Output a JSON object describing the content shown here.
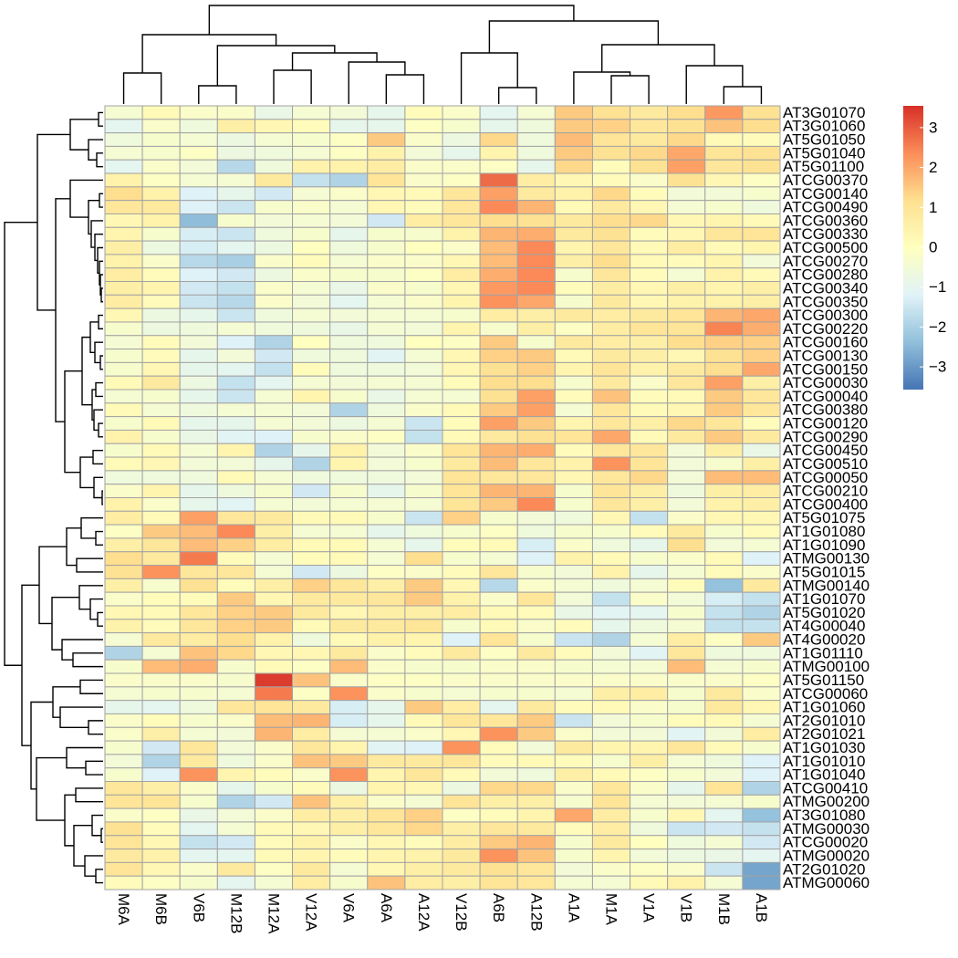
{
  "chart_data": {
    "type": "heatmap",
    "columns": [
      "M6A",
      "M6B",
      "V6B",
      "M12B",
      "M12A",
      "V12A",
      "V6A",
      "A6A",
      "A12A",
      "V12B",
      "A6B",
      "A12B",
      "A1A",
      "M1A",
      "V1A",
      "V1B",
      "M1B",
      "A1B"
    ],
    "rows": [
      "AT3G01070",
      "AT3G01060",
      "AT5G01050",
      "AT5G01040",
      "AT5G01100",
      "ATCG00370",
      "ATCG00140",
      "ATCG00490",
      "ATCG00360",
      "ATCG00330",
      "ATCG00500",
      "ATCG00270",
      "ATCG00280",
      "ATCG00340",
      "ATCG00350",
      "ATCG00300",
      "ATCG00220",
      "ATCG00160",
      "ATCG00130",
      "ATCG00150",
      "ATCG00030",
      "ATCG00040",
      "ATCG00380",
      "ATCG00120",
      "ATCG00290",
      "ATCG00450",
      "ATCG00510",
      "ATCG00050",
      "ATCG00210",
      "ATCG00400",
      "AT5G01075",
      "AT1G01080",
      "AT1G01090",
      "ATMG00130",
      "AT5G01015",
      "ATMG00140",
      "AT1G01070",
      "AT5G01020",
      "AT4G00040",
      "AT4G00020",
      "AT1G01110",
      "ATMG00100",
      "AT5G01150",
      "ATCG00060",
      "AT1G01060",
      "AT2G01010",
      "AT2G01021",
      "AT1G01030",
      "AT1G01010",
      "AT1G01040",
      "ATCG00410",
      "ATMG00200",
      "AT3G01080",
      "ATMG00030",
      "ATCG00020",
      "ATMG00020",
      "AT2G01020",
      "ATMG00060"
    ],
    "values": [
      [
        -0.4,
        0.2,
        -0.2,
        -0.2,
        -0.8,
        -0.4,
        -0.5,
        -0.9,
        0.1,
        -0.2,
        -1,
        -0.4,
        1.5,
        1.1,
        0.8,
        1.2,
        2.2,
        1.1
      ],
      [
        -1,
        -0.2,
        -0.6,
        0.6,
        0.3,
        0.1,
        -0.9,
        -0.9,
        -0.1,
        -0.3,
        -0.9,
        -0.6,
        1.5,
        1.4,
        0.9,
        1.1,
        1.6,
        1.2
      ],
      [
        -0.6,
        -0.3,
        -0.4,
        -0.7,
        -0.4,
        -0.3,
        -0.1,
        1.5,
        -0.2,
        -0.7,
        1.3,
        -0.6,
        1.7,
        1,
        0.8,
        1.3,
        0.2,
        0.1
      ],
      [
        -0.4,
        -0.3,
        -0.1,
        -0.7,
        -0.6,
        -0.4,
        -0.1,
        0.5,
        -0.5,
        -0.9,
        0.4,
        -0.6,
        1.5,
        1.1,
        1.3,
        2,
        1,
        1.1
      ],
      [
        -1,
        -0.2,
        -0.5,
        -1.8,
        -0.6,
        0.5,
        0.5,
        0.7,
        -0.2,
        -0.2,
        -0.1,
        -0.9,
        1.3,
        0.1,
        1.1,
        2.1,
        0.9,
        1.1
      ],
      [
        0.5,
        -0.1,
        -0.4,
        -0.4,
        0.8,
        -1.6,
        -1.9,
        1,
        -0.2,
        -0.1,
        2.8,
        0.7,
        0.3,
        0.1,
        -0.2,
        1.1,
        0.3,
        -0.1
      ],
      [
        1.2,
        0.5,
        -1.2,
        -0.9,
        -1.4,
        -0.4,
        -0.2,
        0.3,
        0.2,
        0.9,
        2.1,
        0.8,
        0.5,
        1.3,
        0.1,
        -0.5,
        -0.5,
        -0.3
      ],
      [
        0.9,
        0.8,
        -1.2,
        -1.5,
        -0.3,
        -0.2,
        -0.4,
        0.3,
        0.1,
        0.9,
        2.4,
        1.8,
        0.2,
        0.8,
        0.3,
        -0.4,
        -0.3,
        -0.6
      ],
      [
        0.3,
        0.5,
        -2.4,
        -0.3,
        -0.5,
        -0.4,
        -0.5,
        -1.4,
        0.7,
        0.9,
        1.2,
        1.1,
        0.8,
        1.2,
        1.3,
        0.3,
        0.4,
        0.2
      ],
      [
        0.4,
        -0.3,
        -1.3,
        -1.5,
        -0.6,
        -0.3,
        -0.9,
        -0.3,
        -0.3,
        0.5,
        1.8,
        1.9,
        0.8,
        1.1,
        0.1,
        0.3,
        0.9,
        1
      ],
      [
        0.6,
        -0.7,
        -1.3,
        -1,
        -0.7,
        0,
        -0.6,
        -0.3,
        0,
        -0.2,
        1.7,
        2.4,
        0.4,
        0.9,
        0.2,
        0.7,
        0.2,
        0.4
      ],
      [
        0.5,
        -0.2,
        -1.8,
        -2,
        -0.2,
        0.1,
        -0.4,
        -0.2,
        -0.2,
        0.3,
        1.7,
        2.4,
        0.6,
        1.2,
        0.2,
        0.1,
        0.4,
        -0.5
      ],
      [
        0.7,
        0.1,
        -1.2,
        -1.4,
        -0.7,
        -0.2,
        -0.3,
        -0.3,
        -0.1,
        0.7,
        1.9,
        2.4,
        -0.3,
        0.9,
        0.1,
        -0.4,
        0.5,
        0.2
      ],
      [
        0.6,
        0.4,
        -1.4,
        -1.6,
        -0.2,
        -0.4,
        -0.8,
        -0.2,
        -0.3,
        0.3,
        2.2,
        2.4,
        0.1,
        0.7,
        0.3,
        0.6,
        0.4,
        0.6
      ],
      [
        0.7,
        0.1,
        -1.5,
        -1.8,
        -0.2,
        -0.5,
        -1,
        -0.4,
        -0.2,
        0.4,
        2.3,
        2,
        -0.3,
        0.8,
        0.3,
        0.5,
        0.5,
        0.6
      ],
      [
        0.3,
        -0.7,
        -0.9,
        -1.5,
        -0.6,
        -0.4,
        -0.5,
        -0.4,
        -0.4,
        -0.3,
        0.7,
        0.6,
        0.8,
        0.7,
        0.8,
        1,
        1.8,
        2
      ],
      [
        -0.3,
        -0.7,
        -0.6,
        -0.4,
        -0.6,
        -0.6,
        -0.8,
        -0.4,
        -0.5,
        0.4,
        -0.3,
        0.6,
        -0.1,
        0.7,
        1,
        1,
        2.5,
        1.9
      ],
      [
        -0.4,
        0.1,
        -0.5,
        -1.2,
        -1.9,
        0,
        -0.6,
        -0.6,
        0,
        -0.1,
        1.5,
        -0.3,
        0.8,
        0.7,
        0.6,
        1.2,
        1.4,
        1.4
      ],
      [
        -0.3,
        0.1,
        -0.9,
        -0.5,
        -1.4,
        -0.6,
        -0.6,
        -1.1,
        -0.4,
        0.3,
        1.4,
        1.5,
        0.2,
        0.8,
        0.6,
        0.3,
        1.1,
        1.4
      ],
      [
        -0.3,
        0.3,
        -0.9,
        -1,
        -1.6,
        0.1,
        -0.6,
        -0.6,
        -0.5,
        0.3,
        1.1,
        1.4,
        0.4,
        1,
        0.5,
        0.8,
        1.2,
        2
      ],
      [
        0.2,
        0.8,
        -0.7,
        -1.6,
        -1,
        -0.4,
        -0.5,
        -0.4,
        -0.4,
        0.1,
        1.2,
        1.2,
        -0.3,
        0.8,
        -0.2,
        0.9,
        2.1,
        0.6
      ],
      [
        -0.4,
        -0.3,
        -0.9,
        -1.5,
        -0.4,
        0.4,
        -0.3,
        -0.8,
        -0.4,
        -0.4,
        1.1,
        2.1,
        0.1,
        1.6,
        0.1,
        0.2,
        1.5,
        0.9
      ],
      [
        0.2,
        -0.4,
        -0.6,
        -0.4,
        -0.4,
        -0.5,
        -1.9,
        -0.6,
        -0.2,
        0.2,
        1.5,
        2.1,
        -0.4,
        0.9,
        0.2,
        0.3,
        1.5,
        0.9
      ],
      [
        -0.3,
        0.2,
        -0.9,
        -0.9,
        -0.4,
        -0.5,
        -0.7,
        -0.4,
        -1.5,
        0.1,
        2.1,
        1.5,
        0.4,
        0.9,
        0.6,
        1.3,
        0.9,
        0.1
      ],
      [
        0.5,
        -0.3,
        -0.8,
        -1.1,
        -1.2,
        -0.3,
        -0.2,
        -0.1,
        -1.6,
        0.2,
        0.8,
        1.1,
        1,
        2,
        0.2,
        0.8,
        1.5,
        0.8
      ],
      [
        -0.3,
        0.2,
        -0.4,
        0.4,
        -1.9,
        -0.9,
        0.5,
        -0.5,
        -0.2,
        1,
        1.8,
        1.9,
        0.1,
        0.9,
        0.9,
        -0.5,
        0.6,
        -0.8
      ],
      [
        0.2,
        0.3,
        -0.5,
        -0.5,
        -0.9,
        -1.9,
        0.4,
        -0.5,
        -0.3,
        0.8,
        1.7,
        0.9,
        0.5,
        2.3,
        1,
        -0.5,
        -0.3,
        0.6
      ],
      [
        -0.6,
        -0.6,
        -0.6,
        0.2,
        -0.4,
        -0.6,
        -0.6,
        -0.6,
        -0.5,
        1,
        0.9,
        0.9,
        0.3,
        0.9,
        1.3,
        -0.5,
        1.7,
        1.7
      ],
      [
        -0.2,
        0.4,
        -0.9,
        -0.6,
        -0.3,
        -1.4,
        -0.3,
        -0.9,
        -0.3,
        1,
        1.8,
        1.8,
        -0.3,
        1,
        0.6,
        -0.6,
        0.6,
        0.7
      ],
      [
        0.5,
        -0.2,
        -0.9,
        -1.1,
        -0.4,
        -0.5,
        -0.4,
        -0.4,
        -0.4,
        1,
        1.5,
        2.4,
        -0.3,
        0.9,
        0.6,
        -0.5,
        0.5,
        0.6
      ],
      [
        0.7,
        0.2,
        2.1,
        0.9,
        0.8,
        0.2,
        0.2,
        -0.3,
        -1.5,
        1.4,
        -0.3,
        -0.5,
        -0.6,
        0.3,
        -1.6,
        -0.2,
        0.3,
        0.3
      ],
      [
        -0.1,
        1.5,
        1.7,
        2.4,
        0.6,
        -0.4,
        -0.4,
        -0.9,
        -0.6,
        -0.3,
        -0.1,
        -0.6,
        -0.3,
        -0.3,
        0.1,
        0.8,
        -0.3,
        0.1
      ],
      [
        0.6,
        0.9,
        1.7,
        1.4,
        0.7,
        0.2,
        0.2,
        -0.4,
        -0.9,
        0.1,
        0.2,
        -1.3,
        -0.2,
        -0.6,
        -0.9,
        1.2,
        -0.5,
        -0.4
      ],
      [
        1.2,
        0.8,
        2.6,
        0.1,
        -0.4,
        0.1,
        0.2,
        -0.4,
        1.2,
        -0.3,
        -0.4,
        -1.2,
        0.5,
        0.2,
        -0.3,
        -0.2,
        0.2,
        -1.2
      ],
      [
        1.1,
        2.3,
        0.9,
        0.9,
        -0.4,
        -1.4,
        -0.7,
        -0.1,
        -0.2,
        0.1,
        0.9,
        -0.3,
        -0.5,
        0.5,
        -0.9,
        -0.4,
        0.1,
        -0.2
      ],
      [
        0.6,
        -0.3,
        1.1,
        0.1,
        0.6,
        1.4,
        0.9,
        0.6,
        1.5,
        0.3,
        -1.8,
        -0.2,
        -0.4,
        -0.6,
        -0.4,
        0.1,
        -2.3,
        0.8
      ],
      [
        -0.2,
        0.1,
        0.1,
        1.5,
        0.3,
        0.8,
        0.8,
        0.9,
        1.5,
        0.5,
        -0.2,
        0.9,
        -0.5,
        -1.6,
        -0.2,
        -0.5,
        -1.3,
        -1.6
      ],
      [
        0.3,
        0.2,
        0.9,
        1.4,
        1.5,
        0.8,
        0.3,
        0.6,
        0.6,
        0.7,
        0.2,
        0.1,
        -0.8,
        -1.1,
        -1,
        -0.3,
        -1.6,
        -1.9
      ],
      [
        0.5,
        0.1,
        0.9,
        1.4,
        1.5,
        0.2,
        0.8,
        0.8,
        1,
        -0.3,
        0.2,
        -0.2,
        0.1,
        -0.9,
        -0.6,
        -0.4,
        -1.6,
        -1.6
      ],
      [
        -0.4,
        0.8,
        0.7,
        1.2,
        0.5,
        -0.6,
        0.2,
        0.5,
        0.4,
        -1.2,
        1,
        -0.3,
        -1.5,
        -1.9,
        -0.4,
        0.7,
        -0.1,
        1.5
      ],
      [
        -1.9,
        -0.4,
        1.6,
        1.3,
        0.3,
        0.3,
        0.8,
        -0.2,
        0.1,
        0.8,
        -0.1,
        0.8,
        0.1,
        -0.5,
        -1.1,
        0.9,
        -0.6,
        -0.6
      ],
      [
        -0.3,
        1.7,
        1.9,
        -0.3,
        0.2,
        -0.1,
        1.7,
        -0.2,
        -0.3,
        -0.3,
        -0.2,
        -0.2,
        -0.3,
        -0.4,
        -0.4,
        1.7,
        -0.4,
        -0.3
      ],
      [
        -0.2,
        -0.2,
        -0.2,
        -0.3,
        3.4,
        1.6,
        -0.2,
        -0.1,
        -0.1,
        -0.2,
        -0.2,
        -0.2,
        -0.2,
        -0.2,
        -0.2,
        -0.2,
        -0.2,
        -0.1
      ],
      [
        -0.4,
        -0.3,
        -0.3,
        -0.4,
        2.6,
        -0.1,
        2.3,
        -0.2,
        -0.3,
        -0.4,
        -0.3,
        -0.3,
        -0.4,
        0.6,
        0.7,
        -0.3,
        0.8,
        -0.2
      ],
      [
        -0.9,
        -1,
        -0.6,
        0.9,
        1,
        0.8,
        -1.3,
        -0.9,
        1.5,
        0.7,
        -1,
        0.8,
        0.1,
        0.2,
        -0.2,
        -0.3,
        0.8,
        0.3
      ],
      [
        -0.2,
        0.1,
        -0.3,
        -0.2,
        1.7,
        1.8,
        -1.3,
        -0.9,
        0.2,
        0.9,
        0.9,
        1.5,
        -1.5,
        -0.5,
        -0.3,
        0.1,
        0.2,
        -0.4
      ],
      [
        -0.2,
        0.6,
        -0.4,
        -0.5,
        1.8,
        0.7,
        -0.4,
        -0.4,
        -0.2,
        0.3,
        2.3,
        1.5,
        -0.2,
        -0.5,
        -0.5,
        -1.1,
        -0.5,
        0.7
      ],
      [
        -0.3,
        -1.4,
        0.9,
        -0.5,
        -0.2,
        0.9,
        0.4,
        -1.1,
        -1.2,
        2.3,
        0.1,
        -0.5,
        0.8,
        0.4,
        0.4,
        0.9,
        0.2,
        -0.3
      ],
      [
        -0.5,
        -1.9,
        0.8,
        -0.6,
        -0.2,
        1.6,
        1.5,
        0.8,
        0.8,
        0.9,
        0.1,
        0.2,
        0.1,
        -0.3,
        0.6,
        -0.4,
        -0.6,
        -1.2
      ],
      [
        -0.3,
        -1.2,
        2.3,
        0.4,
        0.1,
        -0.2,
        2.3,
        0.4,
        0.9,
        0.2,
        -0.5,
        -0.6,
        0.6,
        0.2,
        -0.1,
        -0.3,
        -0.5,
        -1.2
      ],
      [
        0.9,
        0.6,
        -0.2,
        -0.9,
        -0.3,
        0.1,
        -0.7,
        0.4,
        0.3,
        -0.7,
        1.3,
        1.3,
        -0.2,
        0.9,
        -0.2,
        -0.9,
        1,
        -1.9
      ],
      [
        1,
        1,
        -0.3,
        -1.9,
        -1.4,
        1.6,
        0.6,
        -0.2,
        -0.4,
        1,
        0.6,
        0.6,
        -0.3,
        1,
        -0.4,
        -0.5,
        -0.4,
        -0.3
      ],
      [
        -0.2,
        -0.1,
        -0.8,
        -0.5,
        -0.2,
        0.7,
        0.6,
        1,
        1.4,
        -0.1,
        0.1,
        0.4,
        2,
        0.7,
        -0.3,
        0.3,
        -1,
        -2.3
      ],
      [
        1.1,
        0.1,
        -1,
        -0.4,
        0.2,
        0.3,
        0.6,
        0.9,
        1.3,
        0.6,
        0.9,
        0.8,
        0.1,
        0.7,
        -0.6,
        -1.5,
        -1.4,
        -1.6
      ],
      [
        1,
        0.3,
        -1.6,
        -1.4,
        0.1,
        0.5,
        -0.2,
        0.3,
        0.1,
        0.7,
        1.5,
        1.8,
        -0.3,
        0.8,
        0,
        -0.6,
        -0.4,
        -1.4
      ],
      [
        0.8,
        0.5,
        -1,
        -1,
        0.2,
        0.4,
        0.1,
        0.4,
        0.5,
        0.8,
        2.3,
        1.6,
        -0.3,
        0.4,
        -0.5,
        -0.7,
        -0.8,
        -1
      ],
      [
        1,
        0.3,
        -0.2,
        0.8,
        -0.1,
        0.8,
        -0.4,
        0.3,
        0.6,
        0.8,
        1.1,
        0.9,
        -0.5,
        -0.2,
        -0.1,
        -0.2,
        -1.5,
        -2.8
      ],
      [
        0.1,
        -0.1,
        -0.3,
        -1,
        -0.4,
        0.7,
        -0.3,
        1.6,
        0.7,
        0.6,
        1,
        0.9,
        -0.4,
        -0.4,
        0.2,
        0.5,
        -0.4,
        -2.8
      ]
    ],
    "color_range": [
      -3.55,
      3.55
    ],
    "colorscale": [
      "#4575B4",
      "#91BFDB",
      "#E0F3F8",
      "#FFFFBF",
      "#FEE090",
      "#FC8D59",
      "#D73027"
    ],
    "cell_border_color": "#A3A3A3",
    "legend": {
      "placement": "right",
      "ticks": [
        3,
        2,
        1,
        0,
        -1,
        -2,
        -3
      ],
      "tick_labels": [
        "3",
        "2",
        "1",
        "0",
        "−1",
        "−2",
        "−3"
      ]
    },
    "row_dendrogram": true,
    "column_dendrogram": true
  }
}
